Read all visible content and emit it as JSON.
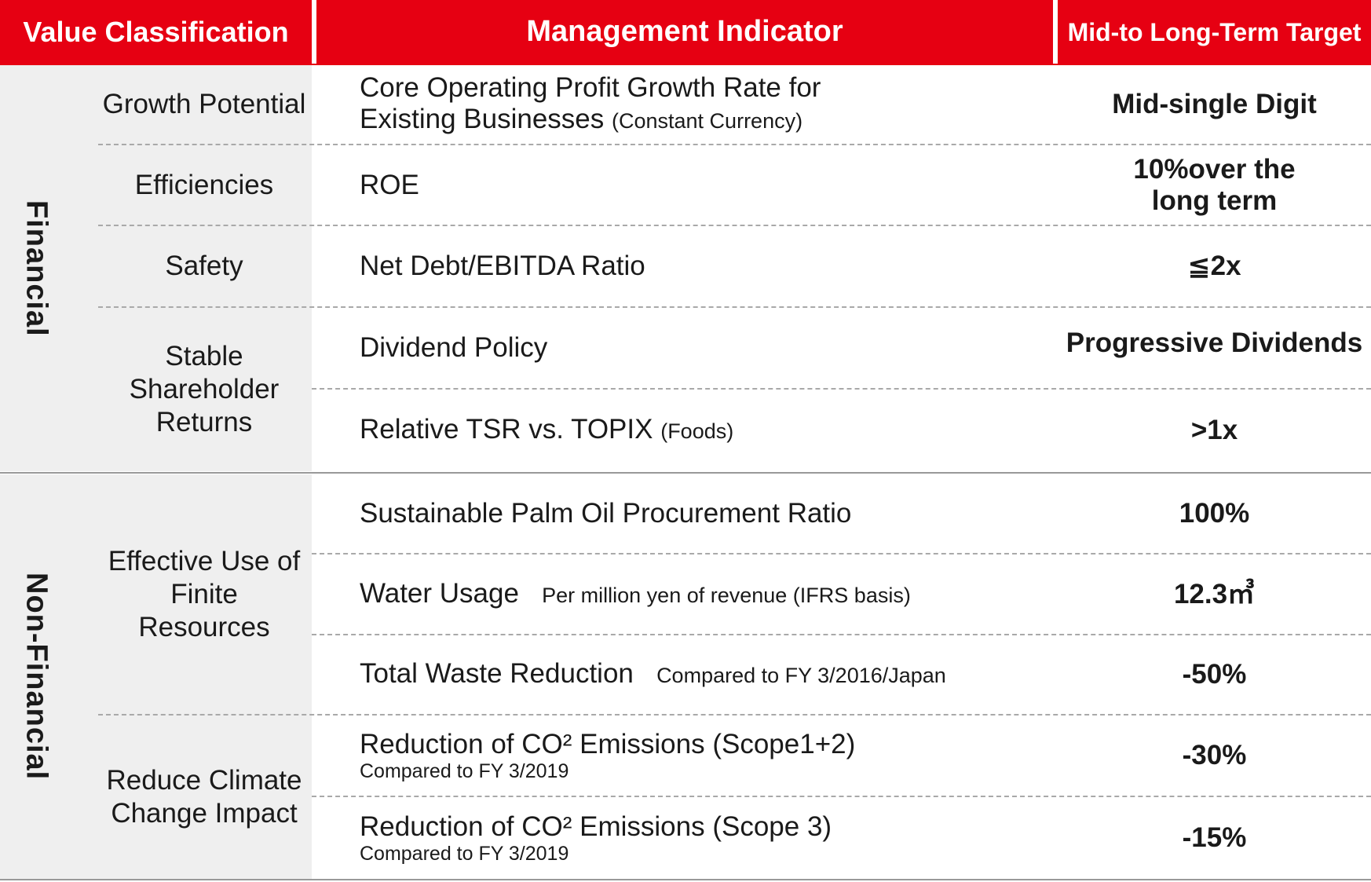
{
  "header": {
    "value_classification": "Value Classification",
    "management_indicator": "Management Indicator",
    "target": "Mid-to Long-Term Target"
  },
  "groups": {
    "financial": "Financial",
    "non_financial": "Non-Financial"
  },
  "categories": {
    "growth": "Growth Potential",
    "efficiencies": "Efficiencies",
    "safety": "Safety",
    "stable_returns": "Stable Shareholder Returns",
    "finite_resources": "Effective Use of Finite Resources",
    "climate": "Reduce Climate Change Impact"
  },
  "rows": [
    {
      "indicator": "Core Operating Profit Growth Rate for",
      "indicator_line2": "Existing Businesses",
      "note": "(Constant Currency)",
      "target": "Mid-single Digit"
    },
    {
      "indicator": "ROE",
      "target": "10%over the long term"
    },
    {
      "indicator": "Net Debt/EBITDA Ratio",
      "target": "≦2x"
    },
    {
      "indicator": "Dividend Policy",
      "target": "Progressive Dividends"
    },
    {
      "indicator": "Relative TSR vs. TOPIX",
      "note": "(Foods)",
      "target": ">1x"
    },
    {
      "indicator": "Sustainable Palm Oil Procurement Ratio",
      "target": "100%"
    },
    {
      "indicator": "Water Usage",
      "note": "Per million yen of revenue (IFRS basis)",
      "target": "12.3㎥"
    },
    {
      "indicator": "Total Waste Reduction",
      "note": "Compared to FY 3/2016/Japan",
      "target": "-50%"
    },
    {
      "indicator": "Reduction of  CO² Emissions (Scope1+2)",
      "note": "Compared to FY 3/2019",
      "target": "-30%"
    },
    {
      "indicator": "Reduction of CO² Emissions (Scope 3)",
      "note": "Compared to FY 3/2019",
      "target": "-15%"
    }
  ],
  "colors": {
    "accent": "#e60012",
    "band": "#efefef"
  }
}
